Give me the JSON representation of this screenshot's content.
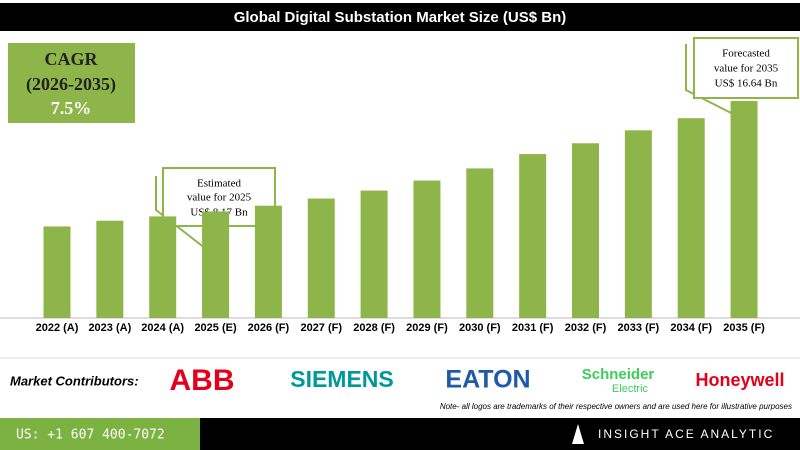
{
  "chart_data": {
    "type": "bar",
    "title": "Global Digital Substation Market Size (US$ Bn)",
    "categories": [
      "2022 (A)",
      "2023 (A)",
      "2024 (A)",
      "2025 (E)",
      "2026 (F)",
      "2027 (F)",
      "2028 (F)",
      "2029 (F)",
      "2030 (F)",
      "2031 (F)",
      "2032 (F)",
      "2033 (F)",
      "2034 (F)",
      "2035 (F)"
    ],
    "values": [
      7.02,
      7.46,
      7.79,
      8.17,
      8.61,
      9.16,
      9.77,
      10.54,
      11.47,
      12.57,
      13.4,
      14.39,
      15.32,
      16.64
    ],
    "color": "#8db54a",
    "cagr": [
      "CAGR",
      "(2026-2035)",
      "7.5%"
    ],
    "annotations": [
      {
        "lines": [
          "Estimated",
          "value for 2025",
          "US$ 8.17 Bn"
        ]
      },
      {
        "lines": [
          "Forecasted",
          "value for 2035",
          "US$ 16.64 Bn"
        ]
      }
    ]
  },
  "contributors": {
    "label": "Market Contributors:",
    "logos": [
      "ABB",
      "SIEMENS",
      "EATON",
      "Schneider",
      "Electric",
      "Honeywell"
    ],
    "note": "Note- all logos are trademarks of their respective owners and are used here for illustrative purposes"
  },
  "footer": {
    "phone": "US: +1 607 400-7072",
    "brand": "INSIGHT ACE ANALYTIC"
  }
}
